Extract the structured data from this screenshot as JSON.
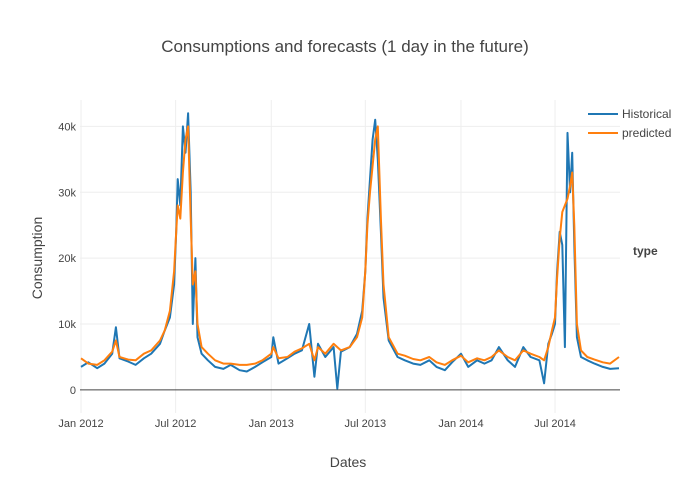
{
  "chart_data": {
    "type": "line",
    "title": "Consumptions and forecasts (1 day in the future)",
    "xlabel": "Dates",
    "ylabel": "Consumption",
    "x_range": [
      "2011-12-30",
      "2014-11-03"
    ],
    "ylim": [
      -3500,
      44000
    ],
    "x_ticks": [
      {
        "date": "2012-01-01",
        "label": "Jan 2012"
      },
      {
        "date": "2012-07-01",
        "label": "Jul 2012"
      },
      {
        "date": "2013-01-01",
        "label": "Jan 2013"
      },
      {
        "date": "2013-07-01",
        "label": "Jul 2013"
      },
      {
        "date": "2014-01-01",
        "label": "Jan 2014"
      },
      {
        "date": "2014-07-01",
        "label": "Jul 2014"
      }
    ],
    "y_ticks": [
      {
        "value": 0,
        "label": "0"
      },
      {
        "value": 10000,
        "label": "10k"
      },
      {
        "value": 20000,
        "label": "20k"
      },
      {
        "value": 30000,
        "label": "30k"
      },
      {
        "value": 40000,
        "label": "40k"
      }
    ],
    "grid": true,
    "legend": {
      "title": "type",
      "position": "right"
    },
    "series": [
      {
        "name": "Historical",
        "color": "#1f77b4",
        "points": [
          [
            "2012-01-01",
            3500
          ],
          [
            "2012-01-15",
            4200
          ],
          [
            "2012-02-01",
            3300
          ],
          [
            "2012-02-15",
            4000
          ],
          [
            "2012-03-01",
            5500
          ],
          [
            "2012-03-08",
            9500
          ],
          [
            "2012-03-15",
            4800
          ],
          [
            "2012-04-01",
            4300
          ],
          [
            "2012-04-15",
            3800
          ],
          [
            "2012-05-01",
            4800
          ],
          [
            "2012-05-15",
            5500
          ],
          [
            "2012-06-01",
            7000
          ],
          [
            "2012-06-10",
            9000
          ],
          [
            "2012-06-20",
            11000
          ],
          [
            "2012-06-28",
            16000
          ],
          [
            "2012-07-02",
            24000
          ],
          [
            "2012-07-05",
            32000
          ],
          [
            "2012-07-10",
            28000
          ],
          [
            "2012-07-15",
            40000
          ],
          [
            "2012-07-20",
            36000
          ],
          [
            "2012-07-25",
            42000
          ],
          [
            "2012-07-30",
            30000
          ],
          [
            "2012-08-03",
            10000
          ],
          [
            "2012-08-08",
            20000
          ],
          [
            "2012-08-12",
            8000
          ],
          [
            "2012-08-20",
            5500
          ],
          [
            "2012-09-01",
            4500
          ],
          [
            "2012-09-15",
            3500
          ],
          [
            "2012-10-01",
            3200
          ],
          [
            "2012-10-15",
            3800
          ],
          [
            "2012-11-01",
            3000
          ],
          [
            "2012-11-15",
            2800
          ],
          [
            "2012-12-01",
            3500
          ],
          [
            "2012-12-15",
            4200
          ],
          [
            "2013-01-01",
            5000
          ],
          [
            "2013-01-05",
            8000
          ],
          [
            "2013-01-15",
            4000
          ],
          [
            "2013-02-01",
            4800
          ],
          [
            "2013-02-15",
            5500
          ],
          [
            "2013-03-01",
            6000
          ],
          [
            "2013-03-15",
            10000
          ],
          [
            "2013-03-25",
            2000
          ],
          [
            "2013-04-01",
            7000
          ],
          [
            "2013-04-15",
            5000
          ],
          [
            "2013-05-01",
            6500
          ],
          [
            "2013-05-08",
            200
          ],
          [
            "2013-05-15",
            5800
          ],
          [
            "2013-06-01",
            6500
          ],
          [
            "2013-06-15",
            8500
          ],
          [
            "2013-06-25",
            12000
          ],
          [
            "2013-07-01",
            18000
          ],
          [
            "2013-07-05",
            26000
          ],
          [
            "2013-07-10",
            32000
          ],
          [
            "2013-07-15",
            38000
          ],
          [
            "2013-07-20",
            41000
          ],
          [
            "2013-07-25",
            35000
          ],
          [
            "2013-07-31",
            24000
          ],
          [
            "2013-08-05",
            14000
          ],
          [
            "2013-08-15",
            7500
          ],
          [
            "2013-09-01",
            5000
          ],
          [
            "2013-09-15",
            4500
          ],
          [
            "2013-10-01",
            4000
          ],
          [
            "2013-10-15",
            3800
          ],
          [
            "2013-11-01",
            4500
          ],
          [
            "2013-11-15",
            3500
          ],
          [
            "2013-12-01",
            3000
          ],
          [
            "2013-12-15",
            4200
          ],
          [
            "2014-01-01",
            5500
          ],
          [
            "2014-01-15",
            3500
          ],
          [
            "2014-02-01",
            4500
          ],
          [
            "2014-02-15",
            4000
          ],
          [
            "2014-03-01",
            4500
          ],
          [
            "2014-03-15",
            6500
          ],
          [
            "2014-04-01",
            4500
          ],
          [
            "2014-04-15",
            3500
          ],
          [
            "2014-05-01",
            6500
          ],
          [
            "2014-05-15",
            5000
          ],
          [
            "2014-06-01",
            4500
          ],
          [
            "2014-06-10",
            1000
          ],
          [
            "2014-06-18",
            7000
          ],
          [
            "2014-06-25",
            8500
          ],
          [
            "2014-07-01",
            10000
          ],
          [
            "2014-07-05",
            18000
          ],
          [
            "2014-07-10",
            24000
          ],
          [
            "2014-07-15",
            22000
          ],
          [
            "2014-07-20",
            6500
          ],
          [
            "2014-07-25",
            39000
          ],
          [
            "2014-07-30",
            30000
          ],
          [
            "2014-08-03",
            36000
          ],
          [
            "2014-08-07",
            22000
          ],
          [
            "2014-08-12",
            8000
          ],
          [
            "2014-08-20",
            5000
          ],
          [
            "2014-09-01",
            4500
          ],
          [
            "2014-09-15",
            4000
          ],
          [
            "2014-10-01",
            3500
          ],
          [
            "2014-10-15",
            3200
          ],
          [
            "2014-11-01",
            3300
          ]
        ]
      },
      {
        "name": "predicted",
        "color": "#ff7f0e",
        "points": [
          [
            "2012-01-01",
            4800
          ],
          [
            "2012-01-15",
            4000
          ],
          [
            "2012-02-01",
            3800
          ],
          [
            "2012-02-15",
            4500
          ],
          [
            "2012-03-01",
            5800
          ],
          [
            "2012-03-08",
            7500
          ],
          [
            "2012-03-15",
            5000
          ],
          [
            "2012-04-01",
            4600
          ],
          [
            "2012-04-15",
            4500
          ],
          [
            "2012-05-01",
            5500
          ],
          [
            "2012-05-15",
            6000
          ],
          [
            "2012-06-01",
            7500
          ],
          [
            "2012-06-10",
            9000
          ],
          [
            "2012-06-20",
            12000
          ],
          [
            "2012-06-28",
            18000
          ],
          [
            "2012-07-02",
            24000
          ],
          [
            "2012-07-05",
            28000
          ],
          [
            "2012-07-10",
            26000
          ],
          [
            "2012-07-15",
            33000
          ],
          [
            "2012-07-20",
            38000
          ],
          [
            "2012-07-25",
            40000
          ],
          [
            "2012-07-30",
            26000
          ],
          [
            "2012-08-03",
            16000
          ],
          [
            "2012-08-08",
            18000
          ],
          [
            "2012-08-12",
            10000
          ],
          [
            "2012-08-20",
            6500
          ],
          [
            "2012-09-01",
            5500
          ],
          [
            "2012-09-15",
            4500
          ],
          [
            "2012-10-01",
            4000
          ],
          [
            "2012-10-15",
            4000
          ],
          [
            "2012-11-01",
            3800
          ],
          [
            "2012-11-15",
            3800
          ],
          [
            "2012-12-01",
            4000
          ],
          [
            "2012-12-15",
            4500
          ],
          [
            "2013-01-01",
            5500
          ],
          [
            "2013-01-05",
            6500
          ],
          [
            "2013-01-15",
            4800
          ],
          [
            "2013-02-01",
            5000
          ],
          [
            "2013-02-15",
            5800
          ],
          [
            "2013-03-01",
            6300
          ],
          [
            "2013-03-15",
            7000
          ],
          [
            "2013-03-25",
            4500
          ],
          [
            "2013-04-01",
            6500
          ],
          [
            "2013-04-15",
            5500
          ],
          [
            "2013-05-01",
            7000
          ],
          [
            "2013-05-08",
            6500
          ],
          [
            "2013-05-15",
            6000
          ],
          [
            "2013-06-01",
            6500
          ],
          [
            "2013-06-15",
            8000
          ],
          [
            "2013-06-25",
            11000
          ],
          [
            "2013-07-01",
            18000
          ],
          [
            "2013-07-05",
            25000
          ],
          [
            "2013-07-10",
            30000
          ],
          [
            "2013-07-15",
            34000
          ],
          [
            "2013-07-20",
            38000
          ],
          [
            "2013-07-25",
            40000
          ],
          [
            "2013-07-31",
            26000
          ],
          [
            "2013-08-05",
            16000
          ],
          [
            "2013-08-15",
            8000
          ],
          [
            "2013-09-01",
            5500
          ],
          [
            "2013-09-15",
            5200
          ],
          [
            "2013-10-01",
            4700
          ],
          [
            "2013-10-15",
            4500
          ],
          [
            "2013-11-01",
            5000
          ],
          [
            "2013-11-15",
            4200
          ],
          [
            "2013-12-01",
            3800
          ],
          [
            "2013-12-15",
            4500
          ],
          [
            "2014-01-01",
            5200
          ],
          [
            "2014-01-15",
            4200
          ],
          [
            "2014-02-01",
            4800
          ],
          [
            "2014-02-15",
            4500
          ],
          [
            "2014-03-01",
            5000
          ],
          [
            "2014-03-15",
            6000
          ],
          [
            "2014-04-01",
            5000
          ],
          [
            "2014-04-15",
            4500
          ],
          [
            "2014-05-01",
            6000
          ],
          [
            "2014-05-15",
            5500
          ],
          [
            "2014-06-01",
            5000
          ],
          [
            "2014-06-10",
            4500
          ],
          [
            "2014-06-18",
            6500
          ],
          [
            "2014-06-25",
            9000
          ],
          [
            "2014-07-01",
            11000
          ],
          [
            "2014-07-05",
            17000
          ],
          [
            "2014-07-10",
            23000
          ],
          [
            "2014-07-15",
            27000
          ],
          [
            "2014-07-20",
            28000
          ],
          [
            "2014-07-25",
            29000
          ],
          [
            "2014-07-30",
            31000
          ],
          [
            "2014-08-03",
            33000
          ],
          [
            "2014-08-07",
            25000
          ],
          [
            "2014-08-12",
            10000
          ],
          [
            "2014-08-20",
            6000
          ],
          [
            "2014-09-01",
            5000
          ],
          [
            "2014-09-15",
            4600
          ],
          [
            "2014-10-01",
            4200
          ],
          [
            "2014-10-15",
            4000
          ],
          [
            "2014-11-01",
            5000
          ]
        ]
      }
    ]
  }
}
